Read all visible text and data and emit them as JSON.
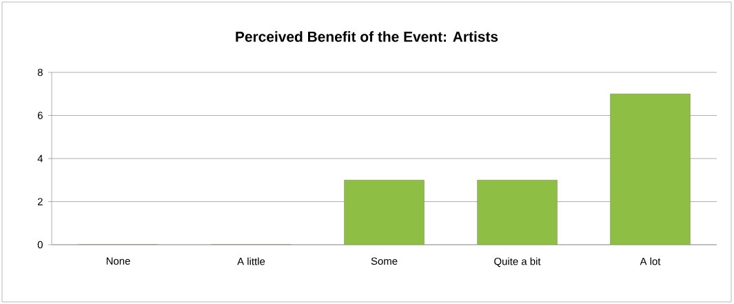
{
  "chart_data": {
    "type": "bar",
    "title": "Perceived Benefit of the Event: Artists",
    "categories": [
      "None",
      "A little",
      "Some",
      "Quite a bit",
      "A lot"
    ],
    "values": [
      0,
      0,
      3,
      3,
      7
    ],
    "color": "#8fbe45",
    "ylim": [
      0,
      8
    ],
    "yticks": [
      0,
      2,
      4,
      6,
      8
    ],
    "grid": "y"
  }
}
